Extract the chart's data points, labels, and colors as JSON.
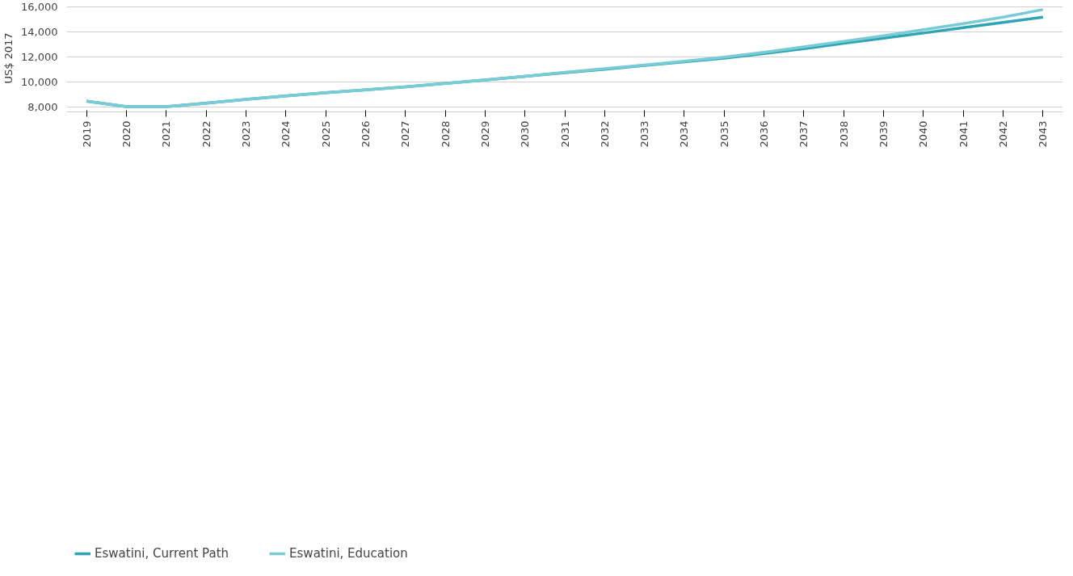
{
  "chart_data": {
    "type": "line",
    "ylabel": "US$ 2017",
    "categories": [
      "2019",
      "2020",
      "2021",
      "2022",
      "2023",
      "2024",
      "2025",
      "2026",
      "2027",
      "2028",
      "2029",
      "2030",
      "2031",
      "2032",
      "2033",
      "2034",
      "2035",
      "2036",
      "2037",
      "2038",
      "2039",
      "2040",
      "2041",
      "2042",
      "2043"
    ],
    "series": [
      {
        "name": "Eswatini, Current Path",
        "color": "#2fa4b4",
        "values": [
          8450,
          8020,
          8020,
          8300,
          8600,
          8880,
          9130,
          9360,
          9600,
          9870,
          10150,
          10430,
          10720,
          11000,
          11300,
          11590,
          11880,
          12250,
          12640,
          13070,
          13480,
          13890,
          14320,
          14740,
          15160
        ]
      },
      {
        "name": "Eswatini, Education",
        "color": "#79cbd6",
        "values": [
          8450,
          8020,
          8020,
          8300,
          8600,
          8880,
          9130,
          9360,
          9600,
          9870,
          10150,
          10440,
          10750,
          11050,
          11340,
          11650,
          11970,
          12350,
          12790,
          13230,
          13680,
          14150,
          14640,
          15160,
          15760
        ]
      }
    ],
    "ylim": [
      7600,
      16170
    ],
    "yticks": [
      {
        "value": 8000,
        "label": "8,000"
      },
      {
        "value": 10000,
        "label": "10,000"
      },
      {
        "value": 12000,
        "label": "12,000"
      },
      {
        "value": 14000,
        "label": "14,000"
      },
      {
        "value": 16000,
        "label": "16,000"
      }
    ],
    "grid": "y",
    "legend": "bottom left",
    "marker": "none",
    "line_style": "solid"
  }
}
